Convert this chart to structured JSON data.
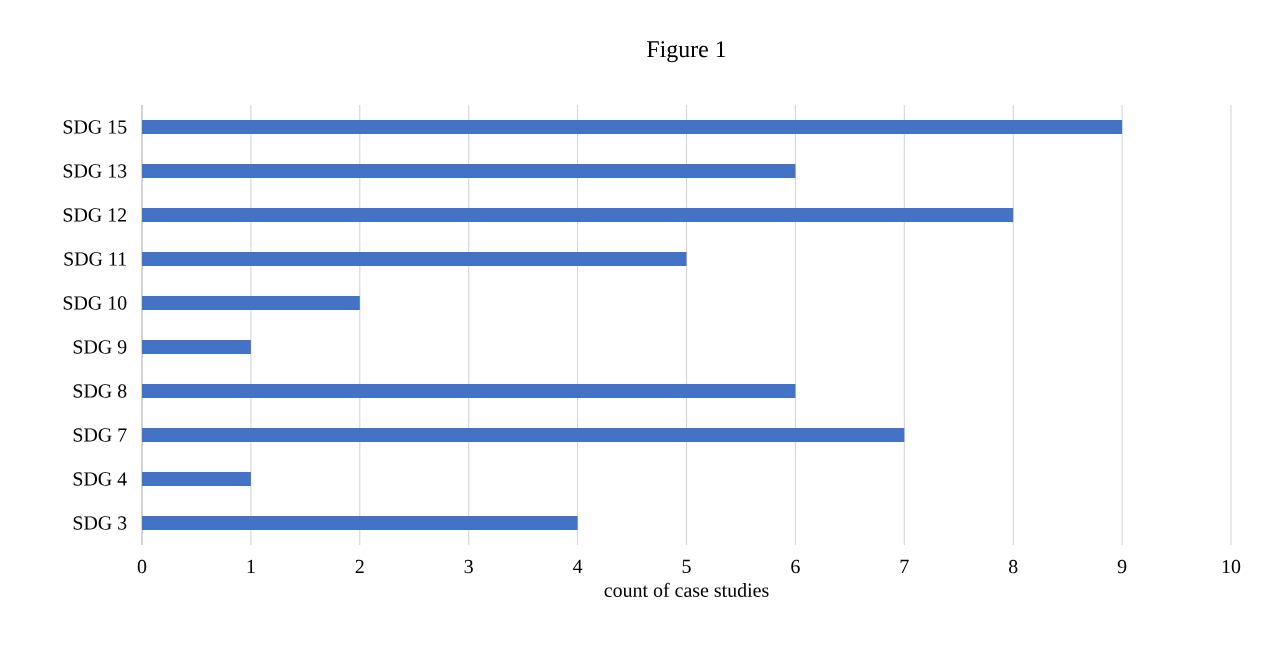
{
  "chart_data": {
    "type": "bar",
    "orientation": "horizontal",
    "title": "Figure 1",
    "xlabel": "count of case studies",
    "categories": [
      "SDG 15",
      "SDG 13",
      "SDG 12",
      "SDG 11",
      "SDG 10",
      "SDG 9",
      "SDG 8",
      "SDG 7",
      "SDG 4",
      "SDG 3"
    ],
    "values": [
      9,
      6,
      8,
      5,
      2,
      1,
      6,
      7,
      1,
      4
    ],
    "color": "#4472c4",
    "xlim": [
      0,
      10
    ],
    "xticks": [
      0,
      1,
      2,
      3,
      4,
      5,
      6,
      7,
      8,
      9,
      10
    ],
    "grid": "x"
  }
}
